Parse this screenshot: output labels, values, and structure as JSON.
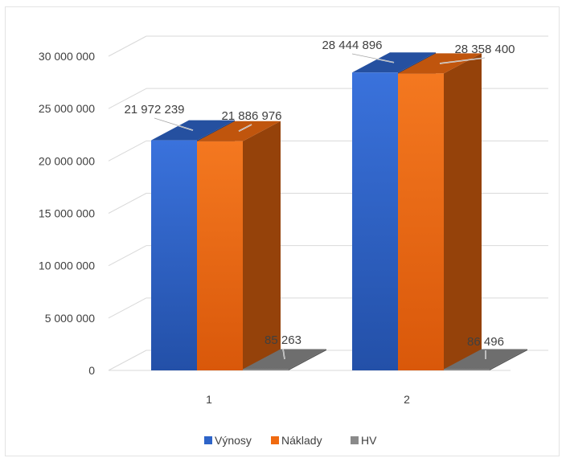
{
  "chart_data": {
    "type": "bar",
    "style": "3d-clustered-column",
    "categories": [
      "1",
      "2"
    ],
    "series": [
      {
        "name": "Výnosy",
        "values": [
          21972239,
          28444896
        ],
        "labels": [
          "21 972 239",
          "28 444 896"
        ],
        "color": "#2e64c8"
      },
      {
        "name": "Náklady",
        "values": [
          21886976,
          28358400
        ],
        "labels": [
          "21 886 976",
          "28 358 400"
        ],
        "color": "#f06a10"
      },
      {
        "name": "HV",
        "values": [
          85263,
          86496
        ],
        "labels": [
          "85 263",
          "86 496"
        ],
        "color": "#8a8a8a"
      }
    ],
    "y_ticks": [
      {
        "value": 0,
        "label": "0"
      },
      {
        "value": 5000000,
        "label": "5 000 000"
      },
      {
        "value": 10000000,
        "label": "10 000 000"
      },
      {
        "value": 15000000,
        "label": "15 000 000"
      },
      {
        "value": 20000000,
        "label": "20 000 000"
      },
      {
        "value": 25000000,
        "label": "25 000 000"
      },
      {
        "value": 30000000,
        "label": "30 000 000"
      }
    ],
    "ylim": [
      0,
      30000000
    ],
    "grid": true,
    "legend_position": "bottom"
  }
}
